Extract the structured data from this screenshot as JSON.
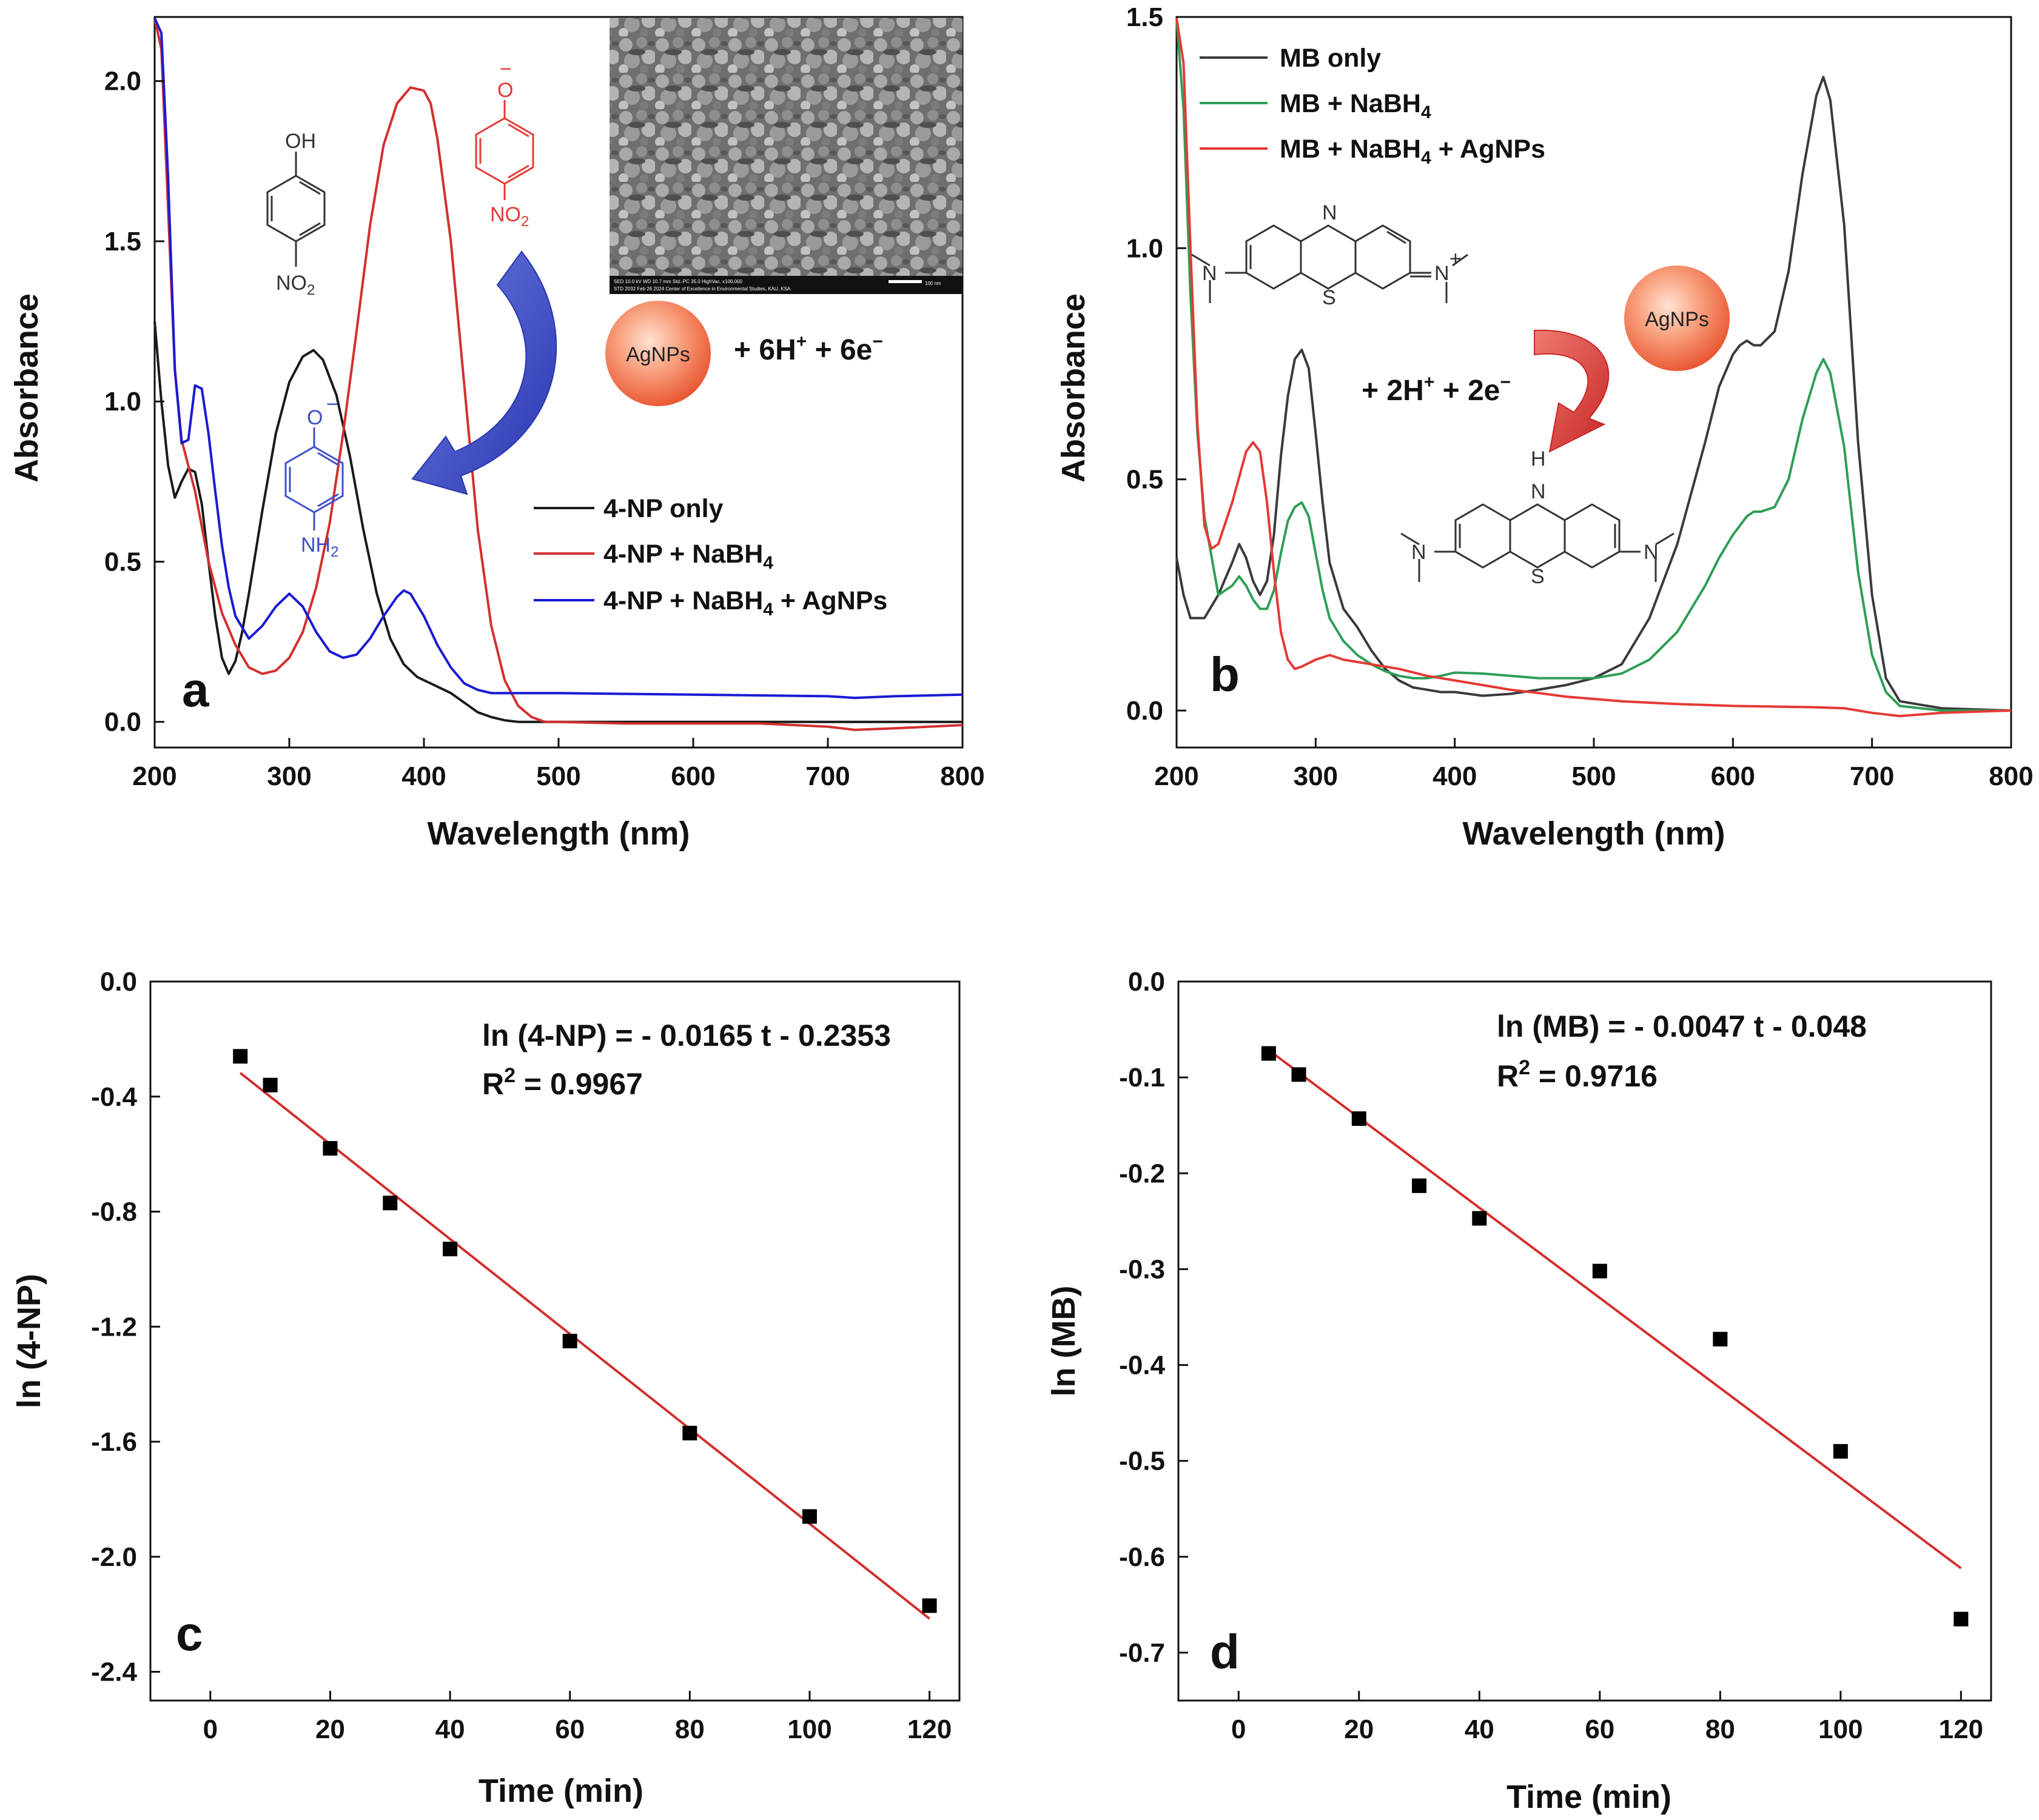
{
  "chart_data": [
    {
      "panel": "a",
      "type": "line",
      "xlabel": "Wavelength (nm)",
      "ylabel": "Absorbance",
      "xlim": [
        200,
        800
      ],
      "ylim": [
        -0.08,
        2.2
      ],
      "xticks": [
        200,
        300,
        400,
        500,
        600,
        700,
        800
      ],
      "yticks": [
        0.0,
        0.5,
        1.0,
        1.5,
        2.0
      ],
      "ytick_labels": [
        "0.0",
        "0.5",
        "1.0",
        "1.5",
        "2.0"
      ],
      "legend": {
        "placement": "lower-right",
        "entries": [
          {
            "pre": "4-NP only",
            "sub": "",
            "post": ""
          },
          {
            "pre": "4-NP + NaBH",
            "sub": "4",
            "post": ""
          },
          {
            "pre": "4-NP + NaBH",
            "sub": "4",
            "post": " + AgNPs"
          }
        ]
      },
      "series": [
        {
          "name": "4-NP only",
          "color": "#1a1a1a",
          "x": [
            200,
            205,
            210,
            215,
            220,
            225,
            230,
            235,
            240,
            245,
            250,
            255,
            260,
            265,
            270,
            280,
            290,
            300,
            310,
            318,
            325,
            335,
            345,
            355,
            365,
            375,
            385,
            395,
            400,
            410,
            420,
            430,
            440,
            450,
            460,
            470,
            480,
            500,
            550,
            600,
            650,
            700,
            750,
            800
          ],
          "y": [
            1.25,
            1.0,
            0.8,
            0.7,
            0.75,
            0.79,
            0.78,
            0.68,
            0.5,
            0.33,
            0.2,
            0.15,
            0.19,
            0.28,
            0.4,
            0.66,
            0.9,
            1.06,
            1.14,
            1.16,
            1.13,
            1.02,
            0.83,
            0.6,
            0.4,
            0.26,
            0.18,
            0.14,
            0.13,
            0.11,
            0.09,
            0.06,
            0.03,
            0.015,
            0.005,
            0.0,
            0.0,
            0.0,
            0.0,
            0.0,
            0.0,
            0.0,
            0.0,
            0.0
          ]
        },
        {
          "name": "4-NP + NaBH4",
          "color": "#d32f2f",
          "x": [
            200,
            205,
            210,
            215,
            220,
            230,
            240,
            250,
            260,
            270,
            280,
            290,
            300,
            310,
            320,
            330,
            340,
            350,
            360,
            370,
            380,
            390,
            400,
            405,
            410,
            420,
            430,
            440,
            450,
            460,
            470,
            480,
            490,
            500,
            550,
            600,
            650,
            700,
            720,
            750,
            800
          ],
          "y": [
            2.2,
            2.1,
            1.6,
            1.1,
            0.88,
            0.72,
            0.5,
            0.34,
            0.24,
            0.17,
            0.15,
            0.16,
            0.2,
            0.28,
            0.42,
            0.62,
            0.9,
            1.22,
            1.55,
            1.8,
            1.93,
            1.98,
            1.97,
            1.93,
            1.82,
            1.5,
            1.05,
            0.6,
            0.3,
            0.13,
            0.05,
            0.015,
            0.0,
            0.0,
            -0.005,
            -0.005,
            -0.005,
            -0.015,
            -0.025,
            -0.02,
            -0.01
          ]
        },
        {
          "name": "4-NP + NaBH4 + AgNPs",
          "color": "#1a1ad4",
          "x": [
            200,
            205,
            210,
            215,
            220,
            225,
            230,
            235,
            240,
            245,
            250,
            255,
            260,
            270,
            280,
            290,
            300,
            310,
            320,
            330,
            340,
            350,
            360,
            370,
            380,
            385,
            390,
            400,
            410,
            420,
            430,
            440,
            450,
            460,
            470,
            480,
            500,
            600,
            700,
            720,
            750,
            800
          ],
          "y": [
            2.2,
            2.15,
            1.7,
            1.1,
            0.87,
            0.88,
            1.05,
            1.04,
            0.9,
            0.72,
            0.55,
            0.42,
            0.33,
            0.26,
            0.3,
            0.36,
            0.4,
            0.36,
            0.28,
            0.22,
            0.2,
            0.21,
            0.26,
            0.33,
            0.39,
            0.41,
            0.4,
            0.33,
            0.24,
            0.17,
            0.12,
            0.1,
            0.09,
            0.09,
            0.09,
            0.09,
            0.09,
            0.085,
            0.08,
            0.075,
            0.08,
            0.085
          ]
        }
      ]
    },
    {
      "panel": "b",
      "type": "line",
      "xlabel": "Wavelength (nm)",
      "ylabel": "Absorbance",
      "xlim": [
        200,
        800
      ],
      "ylim": [
        -0.08,
        1.5
      ],
      "xticks": [
        200,
        300,
        400,
        500,
        600,
        700,
        800
      ],
      "yticks": [
        0.0,
        0.5,
        1.0,
        1.5
      ],
      "ytick_labels": [
        "0.0",
        "0.5",
        "1.0",
        "1.5"
      ],
      "legend": {
        "placement": "top-left",
        "entries": [
          {
            "pre": "MB only",
            "sub": "",
            "post": ""
          },
          {
            "pre": "MB + NaBH",
            "sub": "4",
            "post": ""
          },
          {
            "pre": "MB + NaBH",
            "sub": "4",
            "post": " + AgNPs"
          }
        ]
      },
      "series": [
        {
          "name": "MB only",
          "color": "#3a3a3a",
          "x": [
            200,
            205,
            210,
            220,
            230,
            240,
            245,
            250,
            255,
            260,
            265,
            270,
            275,
            280,
            285,
            290,
            295,
            300,
            305,
            310,
            320,
            330,
            340,
            350,
            360,
            370,
            380,
            390,
            400,
            420,
            440,
            460,
            480,
            500,
            520,
            540,
            560,
            580,
            590,
            600,
            605,
            610,
            615,
            620,
            630,
            640,
            650,
            660,
            665,
            670,
            680,
            690,
            700,
            710,
            720,
            750,
            800
          ],
          "y": [
            0.33,
            0.25,
            0.2,
            0.2,
            0.25,
            0.32,
            0.36,
            0.33,
            0.28,
            0.25,
            0.28,
            0.38,
            0.55,
            0.68,
            0.76,
            0.78,
            0.74,
            0.6,
            0.45,
            0.32,
            0.22,
            0.18,
            0.13,
            0.09,
            0.065,
            0.05,
            0.045,
            0.04,
            0.04,
            0.032,
            0.036,
            0.045,
            0.055,
            0.07,
            0.1,
            0.2,
            0.36,
            0.58,
            0.7,
            0.77,
            0.79,
            0.8,
            0.79,
            0.79,
            0.82,
            0.95,
            1.16,
            1.33,
            1.37,
            1.32,
            1.05,
            0.58,
            0.25,
            0.07,
            0.02,
            0.005,
            0.0
          ]
        },
        {
          "name": "MB + NaBH4",
          "color": "#2e9e55",
          "x": [
            200,
            205,
            210,
            215,
            220,
            230,
            240,
            245,
            250,
            255,
            260,
            265,
            270,
            275,
            280,
            285,
            290,
            295,
            300,
            305,
            310,
            320,
            330,
            340,
            350,
            360,
            370,
            380,
            390,
            400,
            420,
            440,
            460,
            480,
            500,
            520,
            540,
            560,
            580,
            590,
            600,
            610,
            615,
            620,
            630,
            640,
            650,
            660,
            665,
            670,
            680,
            690,
            700,
            710,
            720,
            750,
            800
          ],
          "y": [
            1.5,
            1.3,
            0.9,
            0.6,
            0.42,
            0.25,
            0.27,
            0.29,
            0.27,
            0.24,
            0.22,
            0.22,
            0.26,
            0.34,
            0.41,
            0.44,
            0.45,
            0.42,
            0.34,
            0.26,
            0.2,
            0.15,
            0.12,
            0.1,
            0.085,
            0.075,
            0.07,
            0.07,
            0.075,
            0.082,
            0.08,
            0.075,
            0.07,
            0.07,
            0.07,
            0.08,
            0.11,
            0.17,
            0.27,
            0.33,
            0.38,
            0.42,
            0.43,
            0.43,
            0.44,
            0.5,
            0.63,
            0.73,
            0.76,
            0.73,
            0.57,
            0.3,
            0.12,
            0.04,
            0.01,
            0.0,
            0.0
          ]
        },
        {
          "name": "MB + NaBH4 + AgNPs",
          "color": "#e53935",
          "x": [
            200,
            205,
            210,
            215,
            220,
            225,
            230,
            240,
            250,
            255,
            260,
            265,
            270,
            275,
            280,
            285,
            290,
            300,
            310,
            320,
            340,
            360,
            380,
            400,
            420,
            440,
            460,
            480,
            500,
            520,
            540,
            560,
            580,
            600,
            620,
            640,
            660,
            680,
            700,
            720,
            750,
            800
          ],
          "y": [
            1.5,
            1.4,
            1.0,
            0.62,
            0.4,
            0.35,
            0.36,
            0.45,
            0.56,
            0.58,
            0.56,
            0.45,
            0.3,
            0.17,
            0.11,
            0.09,
            0.095,
            0.11,
            0.12,
            0.11,
            0.1,
            0.09,
            0.075,
            0.065,
            0.055,
            0.045,
            0.038,
            0.03,
            0.025,
            0.02,
            0.017,
            0.014,
            0.012,
            0.01,
            0.009,
            0.008,
            0.007,
            0.005,
            -0.005,
            -0.012,
            -0.005,
            0.0
          ]
        }
      ]
    },
    {
      "panel": "c",
      "type": "scatter",
      "xlabel": "Time (min)",
      "ylabel": "ln (4-NP)",
      "xlim": [
        -10,
        125
      ],
      "ylim": [
        -2.5,
        0.0
      ],
      "xticks": [
        0,
        20,
        40,
        60,
        80,
        100,
        120
      ],
      "yticks": [
        0.0,
        -0.4,
        -0.8,
        -1.2,
        -1.6,
        -2.0,
        -2.4
      ],
      "ytick_labels": [
        "0.0",
        "-0.4",
        "-0.8",
        "-1.2",
        "-1.6",
        "-2.0",
        "-2.4"
      ],
      "x": [
        5,
        10,
        20,
        30,
        40,
        60,
        80,
        100,
        120
      ],
      "y": [
        -0.26,
        -0.36,
        -0.58,
        -0.77,
        -0.93,
        -1.25,
        -1.57,
        -1.86,
        -2.17
      ],
      "fit": {
        "slope": -0.0165,
        "intercept": -0.2353,
        "x_range": [
          5,
          120
        ],
        "color": "#d32f2f"
      },
      "equation": "ln (4-NP) = - 0.0165 t - 0.2353",
      "r2_prefix": "R",
      "r2_sup": "2",
      "r2_value": " = 0.9967"
    },
    {
      "panel": "d",
      "type": "scatter",
      "xlabel": "Time (min)",
      "ylabel": "ln (MB)",
      "xlim": [
        -10,
        125
      ],
      "ylim": [
        -0.75,
        0.0
      ],
      "xticks": [
        0,
        20,
        40,
        60,
        80,
        100,
        120
      ],
      "yticks": [
        0.0,
        -0.1,
        -0.2,
        -0.3,
        -0.4,
        -0.5,
        -0.6,
        -0.7
      ],
      "ytick_labels": [
        "0.0",
        "-0.1",
        "-0.2",
        "-0.3",
        "-0.4",
        "-0.5",
        "-0.6",
        "-0.7"
      ],
      "x": [
        5,
        10,
        20,
        30,
        40,
        60,
        80,
        100,
        120
      ],
      "y": [
        -0.075,
        -0.097,
        -0.143,
        -0.213,
        -0.247,
        -0.302,
        -0.373,
        -0.49,
        -0.665
      ],
      "fit": {
        "slope": -0.0047,
        "intercept": -0.048,
        "x_range": [
          5,
          120
        ],
        "color": "#d32f2f"
      },
      "equation": "ln (MB) = - 0.0047 t - 0.048",
      "r2_prefix": "R",
      "r2_sup": "2",
      "r2_value": " = 0.9716"
    }
  ],
  "annotations": {
    "a": {
      "letter": "a",
      "reaction": {
        "pre": "+ 6H",
        "sup1": "+",
        "mid": " + 6e",
        "sup2": "−"
      },
      "catalyst": "AgNPs",
      "reactant_top": "OH",
      "reactant_bottom": "NO",
      "reactant_bottom_sub": "2",
      "phenolate_top": "O",
      "phenolate_charge": "−",
      "phenolate_bottom": "NO",
      "phenolate_bottom_sub": "2",
      "product_top": "O",
      "product_charge": "−",
      "product_bottom": "NH",
      "product_bottom_sub": "2",
      "sem_caption_1": "SED  10.0 kV  WD 10.7 mm  Std.-PC 35.0  HighVac.  x100,000",
      "sem_caption_2": "STD  2032  Feb 26 2024  Center of Excellence in Environmental Studies, KAU, KSA",
      "sem_scale": "100 nm"
    },
    "b": {
      "letter": "b",
      "reaction": {
        "pre": "+ 2H",
        "sup1": "+",
        "mid": " + 2e",
        "sup2": "−"
      },
      "catalyst": "AgNPs",
      "mb_n_ring": "N",
      "mb_s_ring": "S",
      "mb_n_left": "N",
      "mb_n_right": "N",
      "mb_charge": "+",
      "leuco_h": "H",
      "leuco_n_ring": "N",
      "leuco_s_ring": "S",
      "leuco_n_left": "N",
      "leuco_n_right": "N"
    },
    "c": {
      "letter": "c"
    },
    "d": {
      "letter": "d"
    }
  },
  "colors": {
    "black": "#1a1a1a",
    "red": "#d32f2f",
    "blue": "#1a1ad4",
    "green": "#2e9e55",
    "arrow_blue": "#3d4fc8",
    "arrow_red": "#e53935",
    "sphere": "#f26a4b"
  }
}
